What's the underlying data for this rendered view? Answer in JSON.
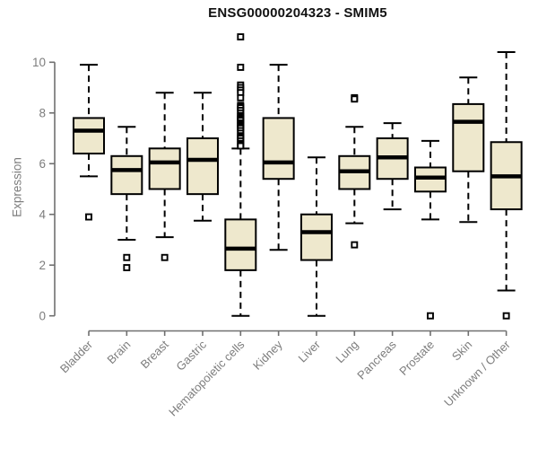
{
  "chart_data": {
    "type": "boxplot",
    "title": "ENSG00000204323 - SMIM5",
    "ylabel": "Expression",
    "xlabel": "",
    "ylim": [
      0,
      11.2
    ],
    "yticks": [
      0,
      2,
      4,
      6,
      8,
      10
    ],
    "grid": false,
    "legend": "none",
    "box_fill_color": "#EEE8CD",
    "box_line_color": "#000000",
    "axis_color": "#707070",
    "label_color": "#7d7d7d",
    "outlier_marker": "open-square",
    "categories": [
      "Bladder",
      "Brain",
      "Breast",
      "Gastric",
      "Hematopoietic cells",
      "Kidney",
      "Liver",
      "Lung",
      "Pancreas",
      "Prostate",
      "Skin",
      "Unknown / Other"
    ],
    "series": [
      {
        "name": "Bladder",
        "whisker_low": 5.5,
        "q1": 6.4,
        "median": 7.3,
        "q3": 7.8,
        "whisker_high": 9.9,
        "outliers": [
          3.9
        ]
      },
      {
        "name": "Brain",
        "whisker_low": 3.0,
        "q1": 4.8,
        "median": 5.75,
        "q3": 6.3,
        "whisker_high": 7.45,
        "outliers": [
          2.3,
          1.9
        ]
      },
      {
        "name": "Breast",
        "whisker_low": 3.1,
        "q1": 5.0,
        "median": 6.05,
        "q3": 6.6,
        "whisker_high": 8.8,
        "outliers": [
          2.3
        ]
      },
      {
        "name": "Gastric",
        "whisker_low": 3.75,
        "q1": 4.8,
        "median": 6.15,
        "q3": 7.0,
        "whisker_high": 8.8,
        "outliers": []
      },
      {
        "name": "Hematopoietic cells",
        "whisker_low": 0.0,
        "q1": 1.8,
        "median": 2.65,
        "q3": 3.8,
        "whisker_high": 6.6,
        "outliers": [
          11.0,
          9.8,
          9.1,
          9.0,
          8.9,
          8.8,
          8.6,
          8.3,
          8.25,
          8.2,
          8.1,
          8.0,
          7.9,
          7.85,
          7.8,
          7.75,
          7.7,
          7.6,
          7.55,
          7.5,
          7.45,
          7.4,
          7.3,
          7.2,
          7.1,
          7.05,
          7.0,
          6.9,
          6.8,
          6.75,
          6.7
        ]
      },
      {
        "name": "Kidney",
        "whisker_low": 2.6,
        "q1": 5.4,
        "median": 6.05,
        "q3": 7.8,
        "whisker_high": 9.9,
        "outliers": []
      },
      {
        "name": "Liver",
        "whisker_low": 0.0,
        "q1": 2.2,
        "median": 3.3,
        "q3": 4.0,
        "whisker_high": 6.25,
        "outliers": []
      },
      {
        "name": "Lung",
        "whisker_low": 3.65,
        "q1": 5.0,
        "median": 5.7,
        "q3": 6.3,
        "whisker_high": 7.45,
        "outliers": [
          8.6,
          8.55,
          2.8
        ]
      },
      {
        "name": "Pancreas",
        "whisker_low": 4.2,
        "q1": 5.4,
        "median": 6.25,
        "q3": 7.0,
        "whisker_high": 7.6,
        "outliers": []
      },
      {
        "name": "Prostate",
        "whisker_low": 3.8,
        "q1": 4.9,
        "median": 5.45,
        "q3": 5.85,
        "whisker_high": 6.9,
        "outliers": [
          0.0
        ]
      },
      {
        "name": "Skin",
        "whisker_low": 3.7,
        "q1": 5.7,
        "median": 7.65,
        "q3": 8.35,
        "whisker_high": 9.4,
        "outliers": []
      },
      {
        "name": "Unknown / Other",
        "whisker_low": 1.0,
        "q1": 4.2,
        "median": 5.5,
        "q3": 6.85,
        "whisker_high": 10.4,
        "outliers": [
          0.0
        ]
      }
    ]
  }
}
